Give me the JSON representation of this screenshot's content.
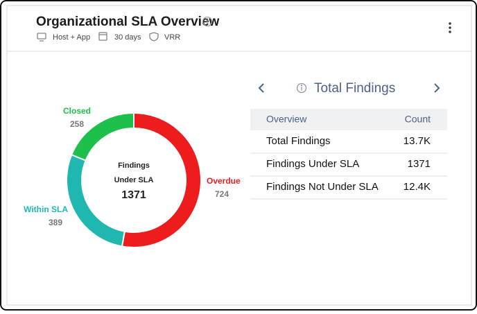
{
  "header": {
    "title": "Organizational SLA Overview",
    "filters": [
      "Host + App",
      "30 days",
      "VRR"
    ]
  },
  "chart_data": {
    "type": "donut",
    "categories": [
      "Overdue",
      "Within SLA",
      "Closed"
    ],
    "values": [
      724,
      389,
      258
    ],
    "colors": [
      "#ee1d1d",
      "#20b7b1",
      "#1cc04a"
    ],
    "center_label": [
      "Findings",
      "Under SLA"
    ],
    "center_value": 1371
  },
  "panel": {
    "title": "Total Findings",
    "table": {
      "columns": [
        "Overview",
        "Count"
      ],
      "rows": [
        [
          "Total Findings",
          "13.7K"
        ],
        [
          "Findings Under SLA",
          "1371"
        ],
        [
          "Findings Not Under SLA",
          "12.4K"
        ]
      ]
    }
  }
}
